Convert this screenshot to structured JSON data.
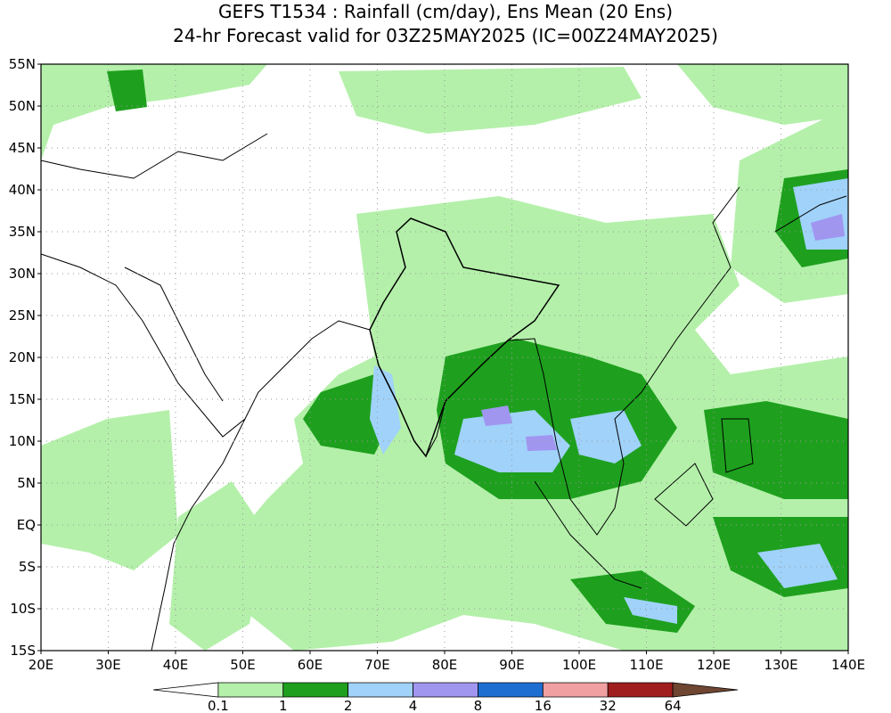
{
  "header": {
    "title": "GEFS T1534 : Rainfall (cm/day), Ens Mean (20 Ens)",
    "subtitle": "24-hr Forecast valid for 03Z25MAY2025 (IC=00Z24MAY2025)"
  },
  "map": {
    "lon_ticks": [
      "20E",
      "30E",
      "40E",
      "50E",
      "60E",
      "70E",
      "80E",
      "90E",
      "100E",
      "110E",
      "120E",
      "130E",
      "140E"
    ],
    "lat_ticks": [
      "55N",
      "50N",
      "45N",
      "40N",
      "35N",
      "30N",
      "25N",
      "20N",
      "15N",
      "10N",
      "5N",
      "EQ",
      "5S",
      "10S",
      "15S"
    ]
  },
  "colorbar": {
    "labels": [
      "0.1",
      "1",
      "2",
      "4",
      "8",
      "16",
      "32",
      "64"
    ],
    "colors": [
      "#ffffff",
      "#b4f0aa",
      "#1ea01e",
      "#a0d2fa",
      "#a096f0",
      "#1e6ed2",
      "#f0a0a0",
      "#a01e1e",
      "#6e4632"
    ]
  }
}
